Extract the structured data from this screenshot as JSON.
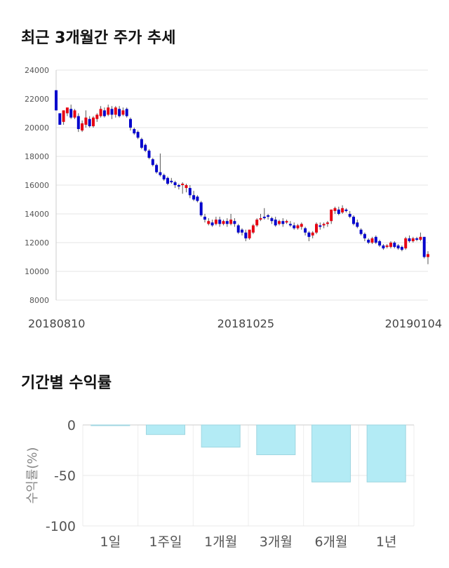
{
  "sections": {
    "price_trend_title": "최근 3개월간 주가 추세",
    "returns_title": "기간별 수익률"
  },
  "colors": {
    "up": "#e60012",
    "down": "#0000cc",
    "bar_fill": "#b3ebf5",
    "bar_stroke": "#9fd6e0",
    "grid": "#e6e6e6"
  },
  "chart_data": [
    {
      "type": "candlestick",
      "title": "최근 3개월간 주가 추세",
      "ylim": [
        8000,
        24000
      ],
      "yticks": [
        "24000",
        "22000",
        "20000",
        "18000",
        "16000",
        "14000",
        "12000",
        "10000",
        "8000"
      ],
      "xtick_labels": [
        {
          "label": "20180810",
          "index": 0
        },
        {
          "label": "20181025",
          "index": 51
        },
        {
          "label": "20190104",
          "index": 100
        }
      ],
      "grid": true,
      "candles": [
        [
          22600,
          21200,
          22600,
          21200
        ],
        [
          21000,
          20200,
          21000,
          20200
        ],
        [
          20400,
          21200,
          20200,
          21200
        ],
        [
          21000,
          21400,
          20800,
          21300
        ],
        [
          21300,
          20700,
          21600,
          20600
        ],
        [
          20700,
          21200,
          20600,
          21300
        ],
        [
          20800,
          19900,
          21000,
          19700
        ],
        [
          19800,
          20300,
          19700,
          20500
        ],
        [
          20200,
          20700,
          20000,
          21200
        ],
        [
          20600,
          20100,
          20800,
          20000
        ],
        [
          20100,
          20700,
          20000,
          20800
        ],
        [
          20600,
          20900,
          20400,
          21000
        ],
        [
          20800,
          21300,
          20700,
          21500
        ],
        [
          21200,
          20800,
          21400,
          20700
        ],
        [
          20900,
          21400,
          20800,
          21600
        ],
        [
          21300,
          20900,
          21500,
          20600
        ],
        [
          20900,
          21400,
          20700,
          21500
        ],
        [
          21300,
          20800,
          21500,
          20700
        ],
        [
          20900,
          21200,
          20800,
          21400
        ],
        [
          21300,
          20800,
          21400,
          20700
        ],
        [
          20600,
          20000,
          20700,
          19800
        ],
        [
          19900,
          19600,
          20000,
          19500
        ],
        [
          19700,
          19300,
          19800,
          19200
        ],
        [
          19200,
          18600,
          19300,
          18500
        ],
        [
          18800,
          18400,
          18900,
          18300
        ],
        [
          18400,
          17900,
          18500,
          17800
        ],
        [
          17800,
          17400,
          17900,
          17300
        ],
        [
          17400,
          16900,
          17500,
          16800
        ],
        [
          16900,
          16700,
          18200,
          16600
        ],
        [
          16700,
          16400,
          16800,
          16300
        ],
        [
          16500,
          16100,
          16600,
          16000
        ],
        [
          16300,
          16200,
          16500,
          16100
        ],
        [
          16200,
          16000,
          16300,
          15800
        ],
        [
          16000,
          15900,
          16100,
          15700
        ],
        [
          16000,
          16100,
          16200,
          15400
        ],
        [
          15800,
          16000,
          16100,
          15500
        ],
        [
          15800,
          15300,
          16000,
          15100
        ],
        [
          15300,
          15000,
          15600,
          14900
        ],
        [
          15200,
          14900,
          15300,
          14800
        ],
        [
          14800,
          13900,
          14900,
          13800
        ],
        [
          13800,
          13600,
          14000,
          13400
        ],
        [
          13300,
          13500,
          13700,
          13200
        ],
        [
          13400,
          13200,
          13600,
          13100
        ],
        [
          13300,
          13600,
          13800,
          13200
        ],
        [
          13600,
          13300,
          13800,
          13100
        ],
        [
          13300,
          13500,
          13600,
          13200
        ],
        [
          13500,
          13300,
          13700,
          13100
        ],
        [
          13300,
          13600,
          14000,
          13200
        ],
        [
          13500,
          13300,
          13700,
          13100
        ],
        [
          13200,
          12700,
          13300,
          12600
        ],
        [
          12900,
          12700,
          13000,
          12500
        ],
        [
          12700,
          12300,
          12900,
          12100
        ],
        [
          12300,
          12900,
          12900,
          12200
        ],
        [
          12700,
          13200,
          13300,
          12600
        ],
        [
          13200,
          13600,
          13700,
          13100
        ],
        [
          13600,
          13700,
          14000,
          13500
        ],
        [
          13800,
          13700,
          14400,
          13600
        ],
        [
          13900,
          13800,
          14000,
          13600
        ],
        [
          13700,
          13500,
          13800,
          13300
        ],
        [
          13600,
          13200,
          13800,
          13100
        ],
        [
          13300,
          13500,
          13600,
          13200
        ],
        [
          13500,
          13300,
          13700,
          13100
        ],
        [
          13400,
          13500,
          13600,
          13300
        ],
        [
          13300,
          13200,
          13500,
          13100
        ],
        [
          13200,
          13000,
          13400,
          12900
        ],
        [
          13000,
          13200,
          13300,
          12900
        ],
        [
          13100,
          13300,
          13400,
          12900
        ],
        [
          13000,
          12700,
          13100,
          12500
        ],
        [
          12700,
          12400,
          12800,
          12100
        ],
        [
          12500,
          12700,
          12800,
          12300
        ],
        [
          12700,
          13300,
          13400,
          12600
        ],
        [
          13200,
          13100,
          13400,
          12900
        ],
        [
          13200,
          13300,
          13400,
          13000
        ],
        [
          13300,
          13400,
          13500,
          13100
        ],
        [
          13500,
          14300,
          14300,
          13300
        ],
        [
          14200,
          14400,
          14500,
          14000
        ],
        [
          14300,
          14000,
          14500,
          13900
        ],
        [
          14100,
          14400,
          14600,
          14000
        ],
        [
          14300,
          14200,
          14400,
          14100
        ],
        [
          14000,
          13800,
          14200,
          13700
        ],
        [
          13800,
          13300,
          13900,
          13200
        ],
        [
          13400,
          13100,
          13600,
          13000
        ],
        [
          12900,
          12600,
          13000,
          12500
        ],
        [
          12600,
          12300,
          12700,
          12100
        ],
        [
          12200,
          12000,
          12300,
          11900
        ],
        [
          12000,
          12300,
          12400,
          11900
        ],
        [
          12400,
          12000,
          12500,
          11900
        ],
        [
          12100,
          11800,
          12200,
          11700
        ],
        [
          11800,
          11600,
          11900,
          11500
        ],
        [
          11700,
          11800,
          11900,
          11600
        ],
        [
          11700,
          12000,
          12100,
          11600
        ],
        [
          12000,
          11700,
          12100,
          11600
        ],
        [
          11800,
          11600,
          11900,
          11500
        ],
        [
          11700,
          11500,
          11800,
          11400
        ],
        [
          11600,
          12300,
          12400,
          11500
        ],
        [
          12300,
          12100,
          12500,
          12000
        ],
        [
          12100,
          12300,
          12400,
          12000
        ],
        [
          12300,
          12200,
          12400,
          12100
        ],
        [
          12200,
          12400,
          12700,
          12100
        ],
        [
          12400,
          11000,
          12400,
          10900
        ],
        [
          11000,
          11200,
          11400,
          10500
        ]
      ]
    },
    {
      "type": "bar",
      "title": "기간별 수익률",
      "ylabel": "수익률(%)",
      "categories": [
        "1일",
        "1주일",
        "1개월",
        "3개월",
        "6개월",
        "1년"
      ],
      "values": [
        -0.5,
        -9.5,
        -22,
        -29.5,
        -56.5,
        -56.5
      ],
      "ylim": [
        -100,
        0
      ],
      "yticks": [
        "0",
        "-50",
        "-100"
      ],
      "grid": true
    }
  ]
}
